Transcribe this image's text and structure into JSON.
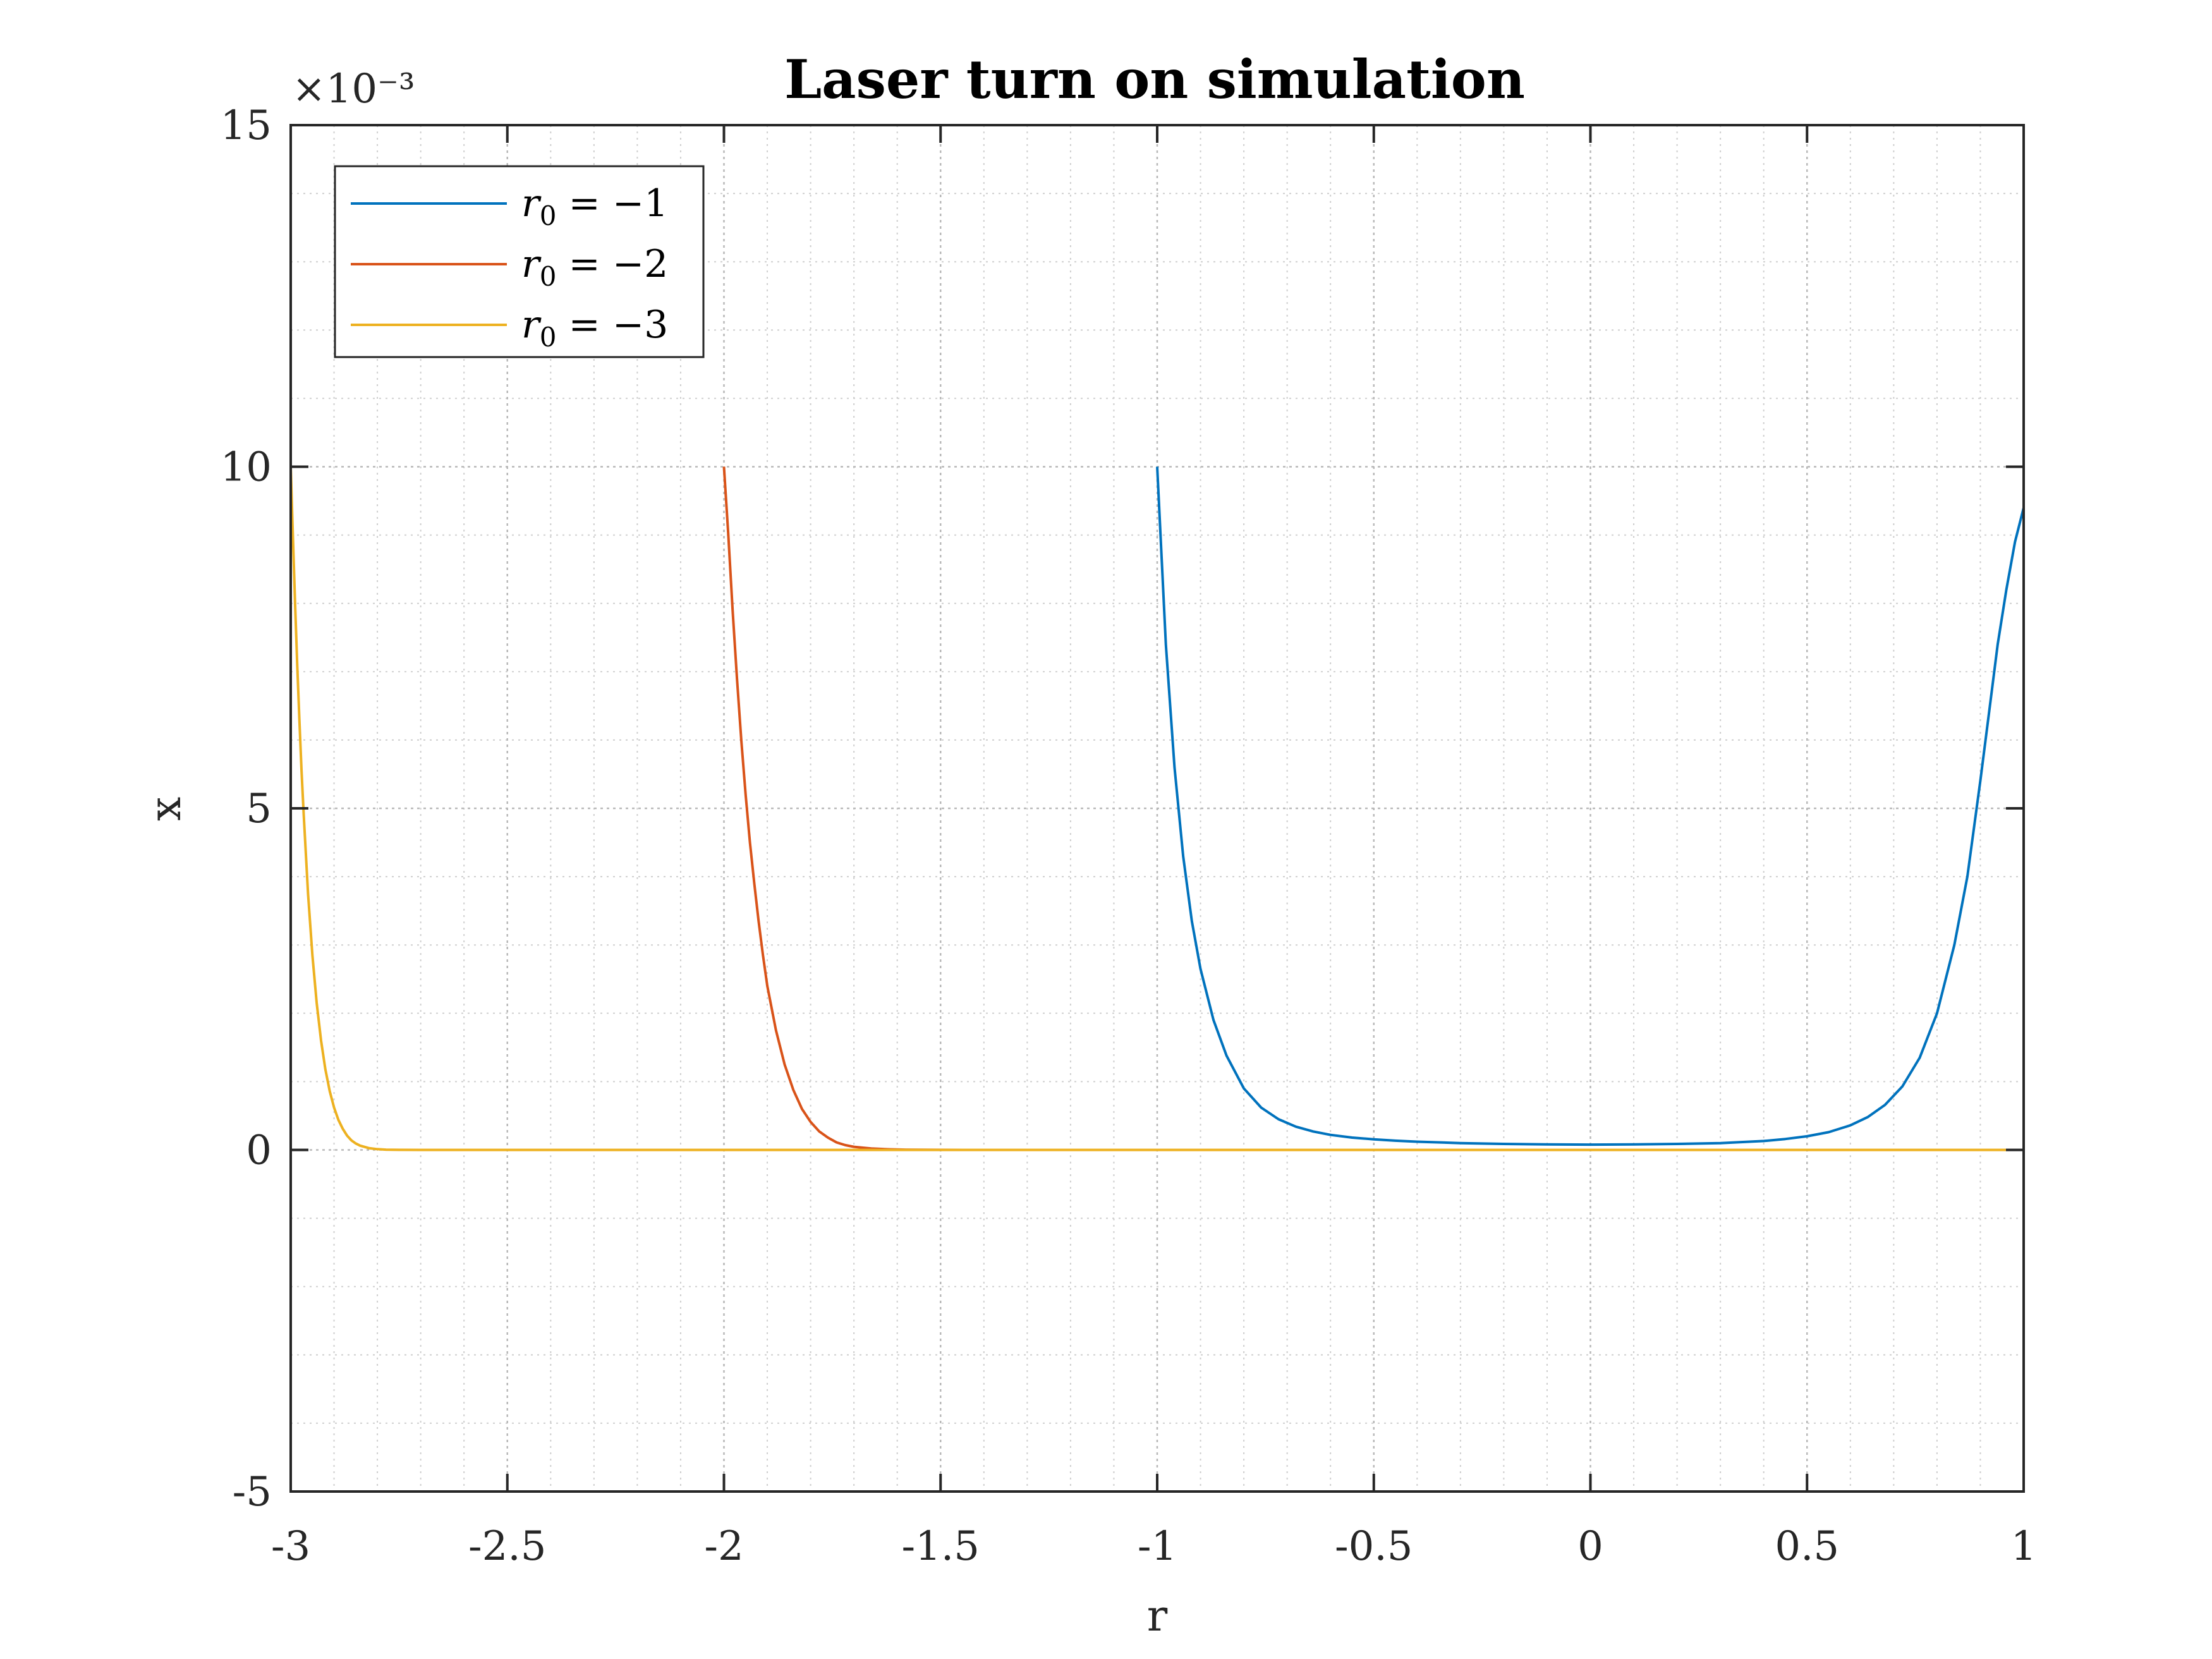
{
  "chart_data": {
    "type": "line",
    "title": "Laser turn on simulation",
    "xlabel": "r",
    "ylabel": "x",
    "y_multiplier": "×10⁻³",
    "xlim": [
      -3,
      1
    ],
    "ylim": [
      -5,
      15
    ],
    "y_scale_note": "y values in units of 1e-3",
    "x_ticks": [
      "-3",
      "-2.5",
      "-2",
      "-1.5",
      "-1",
      "-0.5",
      "0",
      "0.5",
      "1"
    ],
    "y_ticks": [
      "-5",
      "0",
      "5",
      "10",
      "15"
    ],
    "grid": true,
    "minor_grid": true,
    "legend_position": "top-left",
    "series": [
      {
        "name": "r₀ = −1",
        "legend_sub": "0",
        "legend_value": "−1",
        "color": "#0072BD",
        "x": [
          -1.0,
          -0.98,
          -0.96,
          -0.94,
          -0.92,
          -0.9,
          -0.87,
          -0.84,
          -0.8,
          -0.76,
          -0.72,
          -0.68,
          -0.64,
          -0.6,
          -0.55,
          -0.5,
          -0.45,
          -0.4,
          -0.3,
          -0.2,
          -0.1,
          0.0,
          0.1,
          0.2,
          0.3,
          0.4,
          0.45,
          0.5,
          0.55,
          0.6,
          0.64,
          0.68,
          0.72,
          0.76,
          0.8,
          0.84,
          0.87,
          0.9,
          0.92,
          0.94,
          0.96,
          0.98,
          1.0
        ],
        "y": [
          10.0,
          7.4,
          5.6,
          4.3,
          3.35,
          2.65,
          1.9,
          1.38,
          0.9,
          0.62,
          0.45,
          0.34,
          0.27,
          0.22,
          0.18,
          0.155,
          0.135,
          0.12,
          0.1,
          0.088,
          0.081,
          0.078,
          0.081,
          0.088,
          0.1,
          0.13,
          0.16,
          0.2,
          0.26,
          0.36,
          0.48,
          0.66,
          0.93,
          1.35,
          2.0,
          3.0,
          4.0,
          5.4,
          6.4,
          7.4,
          8.2,
          8.9,
          9.4
        ]
      },
      {
        "name": "r₀ = −2",
        "legend_sub": "0",
        "legend_value": "−2",
        "color": "#D95319",
        "x": [
          -2.0,
          -1.99,
          -1.98,
          -1.97,
          -1.96,
          -1.95,
          -1.94,
          -1.93,
          -1.92,
          -1.91,
          -1.9,
          -1.88,
          -1.86,
          -1.84,
          -1.82,
          -1.8,
          -1.78,
          -1.76,
          -1.74,
          -1.72,
          -1.7,
          -1.66,
          -1.62,
          -1.58,
          -1.5,
          -1.4,
          -1.0,
          0.0,
          1.0
        ],
        "y": [
          10.0,
          9.0,
          7.9,
          6.9,
          6.0,
          5.2,
          4.5,
          3.9,
          3.35,
          2.85,
          2.4,
          1.75,
          1.25,
          0.88,
          0.6,
          0.41,
          0.27,
          0.18,
          0.11,
          0.07,
          0.045,
          0.02,
          0.009,
          0.004,
          0.001,
          0.0,
          0.0,
          0.0,
          0.0
        ]
      },
      {
        "name": "r₀ = −3",
        "legend_sub": "0",
        "legend_value": "−3",
        "color": "#EDB120",
        "x": [
          -3.0,
          -2.995,
          -2.99,
          -2.985,
          -2.98,
          -2.975,
          -2.97,
          -2.96,
          -2.95,
          -2.94,
          -2.93,
          -2.92,
          -2.91,
          -2.9,
          -2.89,
          -2.88,
          -2.87,
          -2.86,
          -2.85,
          -2.84,
          -2.82,
          -2.8,
          -2.78,
          -2.75,
          -2.7,
          -2.6,
          -2.0,
          -1.0,
          0.0,
          1.0
        ],
        "y": [
          10.0,
          9.0,
          8.0,
          7.1,
          6.3,
          5.55,
          4.9,
          3.75,
          2.85,
          2.15,
          1.6,
          1.18,
          0.86,
          0.62,
          0.44,
          0.31,
          0.21,
          0.14,
          0.095,
          0.063,
          0.027,
          0.011,
          0.004,
          0.001,
          0.0,
          0.0,
          0.0,
          0.0,
          0.0,
          0.0
        ]
      }
    ]
  }
}
